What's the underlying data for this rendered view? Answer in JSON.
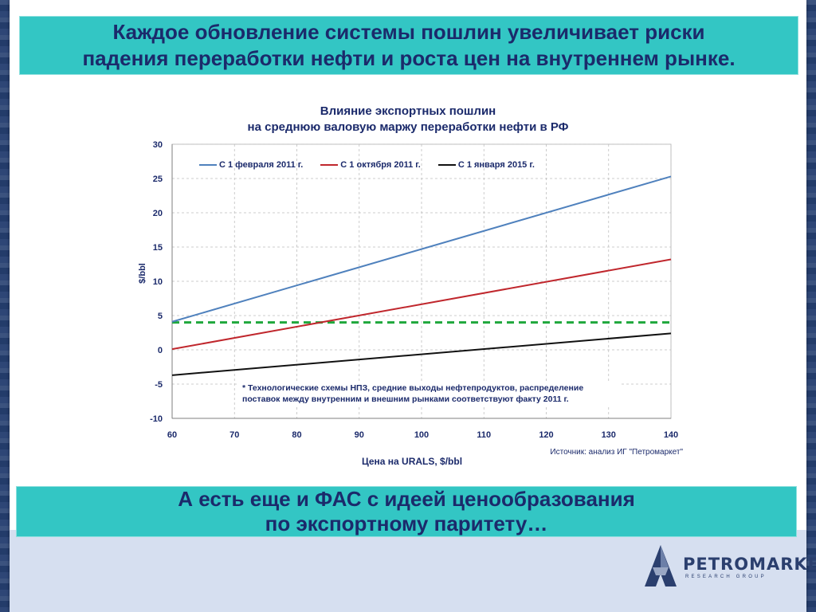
{
  "header": {
    "line1": "Каждое обновление системы пошлин увеличивает риски",
    "line2": "падения переработки нефти и роста цен на внутреннем рынке."
  },
  "footer_box": {
    "line1": "А есть еще и ФАС с идеей ценообразования",
    "line2": "по экспортному паритету…"
  },
  "source": "Источник: анализ ИГ \"Петромаркет\"",
  "footnote": {
    "line1": "* Технологические схемы НПЗ, средние выходы нефтепродуктов, распределение",
    "line2": "поставок между внутренним и внешним рынками соответствуют факту 2011 г."
  },
  "logo": {
    "name": "PETROMARKET",
    "sub": "RESEARCH GROUP"
  },
  "colors": {
    "blue": "#4f81bd",
    "red": "#c0272d",
    "black": "#111111",
    "green_dashed": "#1fa83c",
    "text": "#1b2a6b"
  },
  "chart_data": {
    "type": "line",
    "title_line1": "Влияние экспортных пошлин",
    "title_line2": "на среднюю валовую маржу переработки нефти в РФ",
    "xlabel": "Цена на URALS, $/bbl",
    "ylabel": "$/bbl",
    "xlim": [
      60,
      140
    ],
    "ylim": [
      -10,
      30
    ],
    "x_ticks": [
      60,
      70,
      80,
      90,
      100,
      110,
      120,
      130,
      140
    ],
    "y_ticks": [
      30,
      25,
      20,
      15,
      10,
      5,
      0,
      -5,
      -10
    ],
    "grid": true,
    "legend_position": "top-left",
    "x": [
      60,
      140
    ],
    "series": [
      {
        "name": "С 1 февраля 2011 г.",
        "color": "#4f81bd",
        "values": [
          4.1,
          25.3
        ]
      },
      {
        "name": "С 1 октября 2011 г.",
        "color": "#c0272d",
        "values": [
          0.1,
          13.2
        ]
      },
      {
        "name": "С 1 января 2015 г.",
        "color": "#111111",
        "values": [
          -3.7,
          2.4
        ]
      }
    ],
    "reference_line": {
      "color": "#1fa83c",
      "style": "dashed",
      "value": 4.0
    }
  }
}
